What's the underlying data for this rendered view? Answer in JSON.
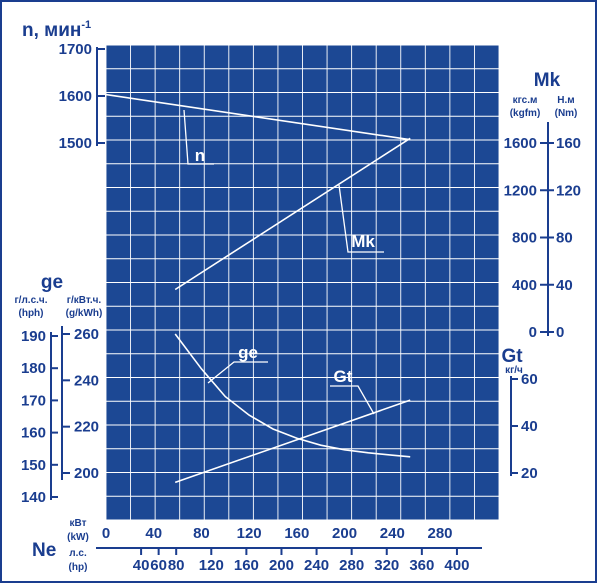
{
  "chart_data": {
    "type": "line",
    "x_axis": {
      "name": "Ne",
      "kw_label": "кВт",
      "kw_label_en": "(kW)",
      "kw_ticks": [
        "0",
        "40",
        "80",
        "120",
        "160",
        "200",
        "240",
        "280"
      ],
      "hp_label": "л.с.",
      "hp_label_en": "(hp)",
      "hp_ticks": [
        "40",
        "60",
        "80",
        "120",
        "160",
        "200",
        "240",
        "280",
        "320",
        "360",
        "400"
      ],
      "xlim_kw": [
        0,
        290
      ]
    },
    "n_axis": {
      "label": "n, мин",
      "exponent": "-1",
      "ticks": [
        "1500",
        "1600",
        "1700"
      ],
      "ylim": [
        1500,
        1700
      ]
    },
    "mk_axis": {
      "label": "Mk",
      "kgfm_label": "кгс.м",
      "kgfm_label_en": "(kgfm)",
      "nm_label": "Н.м",
      "nm_label_en": "(Nm)",
      "nm_ticks": [
        "0",
        "400",
        "800",
        "1200",
        "1600"
      ],
      "kgfm_ticks": [
        "0",
        "40",
        "80",
        "120",
        "160"
      ]
    },
    "ge_axis": {
      "label": "ge",
      "hph_label": "г/л.с.ч.",
      "hph_label_en": "(hph)",
      "kwh_label": "г/кВт.ч.",
      "kwh_label_en": "(g/kWh)",
      "hph_ticks": [
        "140",
        "150",
        "160",
        "170",
        "180",
        "190"
      ],
      "kwh_ticks": [
        "200",
        "220",
        "240",
        "260"
      ]
    },
    "gt_axis": {
      "label": "Gt",
      "unit": "кг/ч",
      "ticks": [
        "20",
        "40",
        "60"
      ]
    },
    "series": [
      {
        "name": "n",
        "unit": "мин-1",
        "x_kw": [
          0,
          255
        ],
        "y": [
          1603,
          1507
        ]
      },
      {
        "name": "Mk",
        "unit": "Nm",
        "x_kw": [
          58,
          255
        ],
        "y": [
          360,
          1640
        ]
      },
      {
        "name": "ge",
        "unit": "g/kWh",
        "x_kw": [
          58,
          80,
          100,
          120,
          140,
          160,
          180,
          200,
          220,
          240,
          255
        ],
        "y": [
          260,
          245,
          233,
          225,
          219,
          215,
          212,
          210,
          208.7,
          207.7,
          207
        ]
      },
      {
        "name": "Gt",
        "unit": "кг/ч",
        "x_kw": [
          58,
          255
        ],
        "y": [
          16,
          51
        ]
      }
    ],
    "grid": true,
    "colors": {
      "background": "#1c4894",
      "grid": "#ffffff",
      "curves": "#ffffff",
      "text": "#1a3d8f"
    }
  }
}
